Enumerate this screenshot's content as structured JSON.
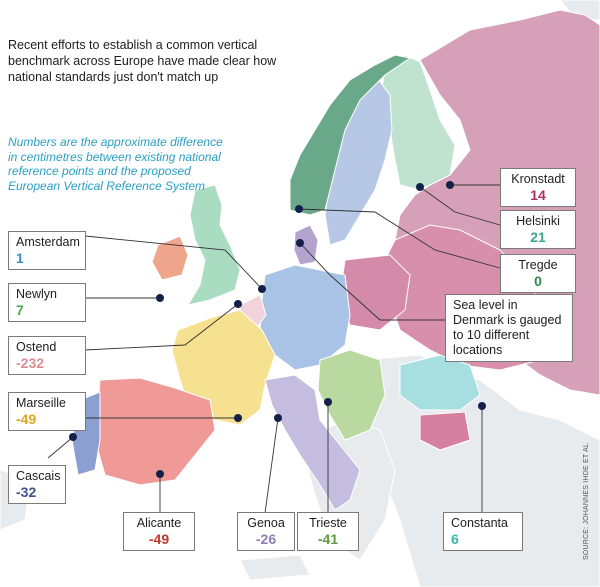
{
  "intro": "Recent efforts to establish a common vertical benchmark across Europe have made clear how national standards just don't match up",
  "note": "Numbers are the approximate difference in centimetres between existing national reference points and the proposed European Vertical Reference System",
  "source": "SOURCE: JOHANNES IHDE ET AL",
  "colors": {
    "positive": "#3a8fc0",
    "negative_red": "#c0392b",
    "accent_green": "#5aa05a"
  },
  "locations": {
    "amsterdam": {
      "name": "Amsterdam",
      "value": "1",
      "color": "#3b8dc6"
    },
    "newlyn": {
      "name": "Newlyn",
      "value": "7",
      "color": "#4faa4f"
    },
    "ostend": {
      "name": "Ostend",
      "value": "-232",
      "color": "#e08a8f"
    },
    "marseille": {
      "name": "Marseille",
      "value": "-49",
      "color": "#d9a820"
    },
    "cascais": {
      "name": "Cascais",
      "value": "-32",
      "color": "#3f4f8f"
    },
    "alicante": {
      "name": "Alicante",
      "value": "-49",
      "color": "#c0392b"
    },
    "genoa": {
      "name": "Genoa",
      "value": "-26",
      "color": "#8a7fb6"
    },
    "trieste": {
      "name": "Trieste",
      "value": "-41",
      "color": "#5c9c3e"
    },
    "constanta": {
      "name": "Constanta",
      "value": "6",
      "color": "#36b7b0"
    },
    "kronstadt": {
      "name": "Kronstadt",
      "value": "14",
      "color": "#b0315f"
    },
    "helsinki": {
      "name": "Helsinki",
      "value": "21",
      "color": "#3aa889"
    },
    "tregde": {
      "name": "Tregde",
      "value": "0",
      "color": "#2e8a4e"
    },
    "denmark": {
      "text": "Sea level in Denmark is gauged to 10 different locations"
    }
  }
}
